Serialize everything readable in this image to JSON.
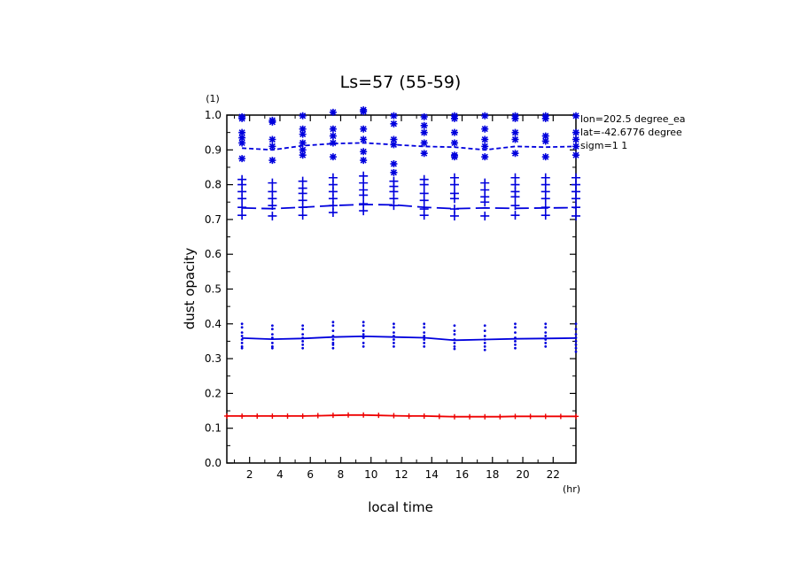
{
  "chart_data": {
    "type": "line",
    "title": "Ls=57 (55-59)",
    "xlabel": "local time",
    "ylabel": "dust opacity",
    "x_unit": "(hr)",
    "y_unit": "(1)",
    "xlim": [
      0.5,
      23.5
    ],
    "ylim": [
      0,
      1.0
    ],
    "x_ticks": [
      2,
      4,
      6,
      8,
      10,
      12,
      14,
      16,
      18,
      20,
      22
    ],
    "x_tick_labels": [
      "2",
      "4",
      "6",
      "8",
      "10",
      "12",
      "14",
      "16",
      "18",
      "20",
      "22"
    ],
    "y_ticks": [
      0.0,
      0.1,
      0.2,
      0.3,
      0.4,
      0.5,
      0.6,
      0.7,
      0.8,
      0.9,
      1.0
    ],
    "y_tick_labels": [
      "0.0",
      "0.1",
      "0.2",
      "0.3",
      "0.4",
      "0.5",
      "0.6",
      "0.7",
      "0.8",
      "0.9",
      "1.0"
    ],
    "annotations": [
      "lon=202.5 degree_ea",
      "lat=-42.6776 degree",
      "sigm=1 1"
    ],
    "colors": {
      "blue": "#0000dd",
      "red": "#ee0000"
    },
    "scatter_x": [
      1.5,
      3.5,
      5.5,
      7.5,
      9.5,
      11.5,
      13.5,
      15.5,
      17.5,
      19.5,
      21.5,
      23.5
    ],
    "series": [
      {
        "style": "dashed",
        "color": "#0000dd",
        "x": [
          1.5,
          3.5,
          5.5,
          7.5,
          9.5,
          11.5,
          13.5,
          15.5,
          17.5,
          19.5,
          21.5,
          23.5
        ],
        "values": [
          0.905,
          0.9,
          0.912,
          0.918,
          0.92,
          0.915,
          0.91,
          0.908,
          0.9,
          0.91,
          0.908,
          0.91
        ]
      },
      {
        "style": "long-dash",
        "color": "#0000dd",
        "x": [
          1.5,
          3.5,
          5.5,
          7.5,
          9.5,
          11.5,
          13.5,
          15.5,
          17.5,
          19.5,
          21.5,
          23.5
        ],
        "values": [
          0.733,
          0.731,
          0.735,
          0.74,
          0.743,
          0.742,
          0.735,
          0.731,
          0.733,
          0.732,
          0.733,
          0.734
        ]
      },
      {
        "style": "solid",
        "color": "#0000dd",
        "x": [
          1.5,
          3.5,
          5.5,
          7.5,
          9.5,
          11.5,
          13.5,
          15.5,
          17.5,
          19.5,
          21.5,
          23.5
        ],
        "values": [
          0.359,
          0.356,
          0.358,
          0.362,
          0.364,
          0.362,
          0.36,
          0.353,
          0.355,
          0.357,
          0.358,
          0.359
        ]
      },
      {
        "style": "solid",
        "color": "#ee0000",
        "markers": "plus",
        "x": [
          0.5,
          1.5,
          2.5,
          3.5,
          4.5,
          5.5,
          6.5,
          7.5,
          8.5,
          9.5,
          10.5,
          11.5,
          12.5,
          13.5,
          14.5,
          15.5,
          16.5,
          17.5,
          18.5,
          19.5,
          20.5,
          21.5,
          22.5,
          23.5
        ],
        "values": [
          0.135,
          0.135,
          0.135,
          0.135,
          0.135,
          0.135,
          0.136,
          0.137,
          0.138,
          0.138,
          0.137,
          0.136,
          0.135,
          0.135,
          0.134,
          0.133,
          0.133,
          0.133,
          0.133,
          0.134,
          0.134,
          0.134,
          0.134,
          0.134
        ]
      }
    ],
    "scatter_groups": [
      {
        "marker": "asterisk",
        "color": "#0000dd",
        "values": [
          [
            0.995,
            0.99,
            0.95,
            0.935,
            0.92,
            0.875
          ],
          [
            0.985,
            0.98,
            0.93,
            0.91,
            0.87
          ],
          [
            0.998,
            0.96,
            0.945,
            0.92,
            0.9,
            0.885
          ],
          [
            1.008,
            0.96,
            0.94,
            0.92,
            0.88
          ],
          [
            1.015,
            1.01,
            0.96,
            0.93,
            0.895,
            0.87
          ],
          [
            0.998,
            0.975,
            0.93,
            0.915,
            0.86,
            0.835
          ],
          [
            0.995,
            0.97,
            0.95,
            0.92,
            0.89
          ],
          [
            0.998,
            0.99,
            0.95,
            0.92,
            0.885,
            0.88
          ],
          [
            0.998,
            0.96,
            0.93,
            0.91,
            0.88
          ],
          [
            0.998,
            0.99,
            0.95,
            0.93,
            0.89
          ],
          [
            0.998,
            0.99,
            0.94,
            0.925,
            0.88
          ],
          [
            0.998,
            0.95,
            0.93,
            0.91,
            0.885
          ]
        ]
      },
      {
        "marker": "plus",
        "color": "#0000dd",
        "values": [
          [
            0.815,
            0.8,
            0.78,
            0.76,
            0.735,
            0.712
          ],
          [
            0.805,
            0.78,
            0.76,
            0.74,
            0.71
          ],
          [
            0.81,
            0.79,
            0.775,
            0.755,
            0.735,
            0.712
          ],
          [
            0.82,
            0.8,
            0.78,
            0.76,
            0.74,
            0.72
          ],
          [
            0.825,
            0.805,
            0.785,
            0.77,
            0.745,
            0.725
          ],
          [
            0.81,
            0.795,
            0.78,
            0.76,
            0.74
          ],
          [
            0.815,
            0.8,
            0.775,
            0.755,
            0.73,
            0.712
          ],
          [
            0.82,
            0.8,
            0.775,
            0.76,
            0.73,
            0.71
          ],
          [
            0.805,
            0.785,
            0.765,
            0.75,
            0.71
          ],
          [
            0.82,
            0.8,
            0.78,
            0.765,
            0.74,
            0.712
          ],
          [
            0.82,
            0.8,
            0.78,
            0.76,
            0.735,
            0.712
          ],
          [
            0.82,
            0.8,
            0.78,
            0.76,
            0.735,
            0.71
          ]
        ]
      },
      {
        "marker": "dot",
        "color": "#0000dd",
        "values": [
          [
            0.4,
            0.39,
            0.375,
            0.365,
            0.355,
            0.345,
            0.335,
            0.33
          ],
          [
            0.395,
            0.385,
            0.37,
            0.36,
            0.345,
            0.335,
            0.33
          ],
          [
            0.395,
            0.385,
            0.37,
            0.36,
            0.35,
            0.34,
            0.33
          ],
          [
            0.405,
            0.395,
            0.38,
            0.365,
            0.355,
            0.345,
            0.34,
            0.33
          ],
          [
            0.405,
            0.395,
            0.38,
            0.37,
            0.36,
            0.345,
            0.335
          ],
          [
            0.4,
            0.39,
            0.375,
            0.365,
            0.355,
            0.345,
            0.335
          ],
          [
            0.4,
            0.39,
            0.375,
            0.365,
            0.355,
            0.345,
            0.335
          ],
          [
            0.395,
            0.38,
            0.37,
            0.355,
            0.345,
            0.335,
            0.328
          ],
          [
            0.395,
            0.38,
            0.365,
            0.355,
            0.345,
            0.335,
            0.325
          ],
          [
            0.4,
            0.39,
            0.375,
            0.36,
            0.35,
            0.34,
            0.33
          ],
          [
            0.4,
            0.39,
            0.375,
            0.365,
            0.355,
            0.345,
            0.335
          ],
          [
            0.4,
            0.385,
            0.37,
            0.36,
            0.35,
            0.34,
            0.33,
            0.32
          ]
        ]
      }
    ]
  }
}
